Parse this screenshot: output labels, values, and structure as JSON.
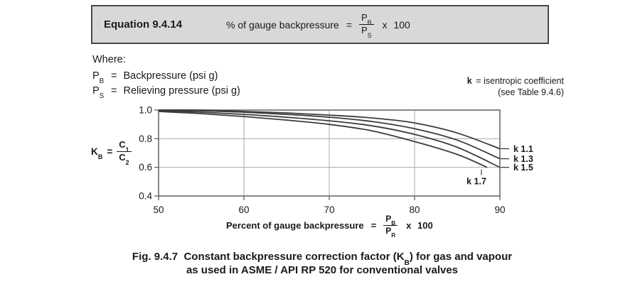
{
  "equation_box": {
    "label": "Equation 9.4.14",
    "lhs": "% of gauge backpressure",
    "equals": "=",
    "frac": {
      "num_base": "P",
      "num_sub": "B",
      "den_base": "P",
      "den_sub": "S"
    },
    "multiplier": "x 100"
  },
  "where": {
    "heading": "Where:",
    "items": [
      {
        "base": "P",
        "sub": "B",
        "eq": "=",
        "desc": "Backpressure (psi g)"
      },
      {
        "base": "P",
        "sub": "S",
        "eq": "=",
        "desc": "Relieving pressure (psi g)"
      }
    ]
  },
  "k_note": {
    "line1_bold": "k",
    "line1_rest": "= isentropic coefficient",
    "line2": "(see Table 9.4.6)"
  },
  "kb_formula": {
    "base": "K",
    "sub": "B",
    "eq": "=",
    "frac": {
      "num_base": "C",
      "num_sub": "1",
      "den_base": "C",
      "den_sub": "2"
    }
  },
  "x_axis_title": {
    "lhs": "Percent of gauge backpressure",
    "equals": "=",
    "frac": {
      "num_base": "P",
      "num_sub": "B",
      "den_base": "P",
      "den_sub": "R"
    },
    "multiplier": "x 100"
  },
  "caption": {
    "line1_prefix": "Fig. 9.4.7  Constant backpressure correction factor (K",
    "line1_sub": "B",
    "line1_suffix": ") for gas and vapour",
    "line2": "as used in ASME / API RP 520 for conventional valves"
  },
  "chart_data": {
    "type": "line",
    "title": "",
    "xlabel": "Percent of gauge backpressure = PB/PR x 100",
    "ylabel": "KB = C1/C2",
    "xlim": [
      50,
      90
    ],
    "ylim": [
      0.4,
      1.0
    ],
    "x_ticks": [
      50,
      60,
      70,
      80,
      90
    ],
    "y_ticks": [
      1.0,
      0.8,
      0.6,
      0.4
    ],
    "grid": true,
    "legend_position": "right-edge-labels",
    "colors": {
      "grid": "#a8a8a8",
      "frame": "#555555",
      "curve": "#3c3c3c"
    },
    "series": [
      {
        "name": "k 1.1",
        "label_side": "right",
        "points": [
          [
            50,
            1.0
          ],
          [
            55,
            1.0
          ],
          [
            60,
            0.99
          ],
          [
            65,
            0.98
          ],
          [
            70,
            0.965
          ],
          [
            75,
            0.945
          ],
          [
            80,
            0.91
          ],
          [
            85,
            0.84
          ],
          [
            90,
            0.73
          ]
        ]
      },
      {
        "name": "k 1.3",
        "label_side": "right",
        "points": [
          [
            50,
            1.0
          ],
          [
            55,
            0.995
          ],
          [
            60,
            0.985
          ],
          [
            65,
            0.97
          ],
          [
            70,
            0.95
          ],
          [
            75,
            0.92
          ],
          [
            80,
            0.87
          ],
          [
            85,
            0.79
          ],
          [
            90,
            0.66
          ]
        ]
      },
      {
        "name": "k 1.5",
        "label_side": "right",
        "points": [
          [
            50,
            0.995
          ],
          [
            55,
            0.985
          ],
          [
            60,
            0.97
          ],
          [
            65,
            0.95
          ],
          [
            70,
            0.925
          ],
          [
            75,
            0.89
          ],
          [
            80,
            0.83
          ],
          [
            85,
            0.74
          ],
          [
            90,
            0.6
          ]
        ]
      },
      {
        "name": "k 1.7",
        "label_side": "below-end",
        "points": [
          [
            50,
            0.99
          ],
          [
            55,
            0.975
          ],
          [
            60,
            0.955
          ],
          [
            65,
            0.93
          ],
          [
            70,
            0.9
          ],
          [
            75,
            0.855
          ],
          [
            80,
            0.78
          ],
          [
            85,
            0.69
          ],
          [
            88.5,
            0.6
          ]
        ]
      }
    ]
  }
}
